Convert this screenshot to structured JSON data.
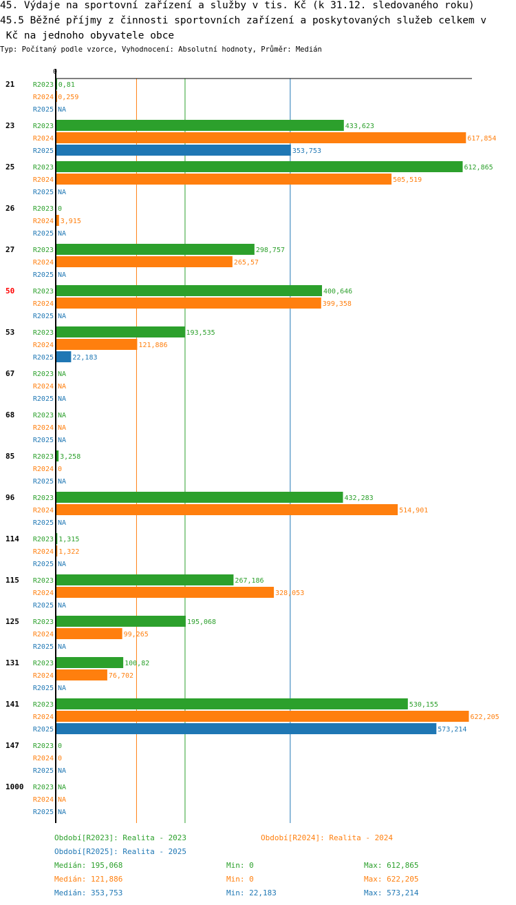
{
  "title": "45. Výdaje na sportovní zařízení a služby v tis. Kč (k 31.12. sledovaného roku)",
  "subtitle_line1": "45.5 Běžné příjmy z činnosti sportovních zařízení a poskytovaných služeb celkem v",
  "subtitle_line2": " Kč na jednoho obyvatele obce",
  "info": "Typ: Počítaný podle vzorce, Vyhodnocení: Absolutní hodnoty, Průměr: Medián",
  "colors": {
    "R2023": "#2ca02c",
    "R2024": "#ff7f0e",
    "R2025": "#1f77b4",
    "highlight": "#ff0000"
  },
  "chart_data": {
    "type": "bar",
    "orientation": "horizontal",
    "x_tick": "0",
    "xlim": [
      0,
      630
    ],
    "series_names": [
      "R2023",
      "R2024",
      "R2025"
    ],
    "categories": [
      "21",
      "23",
      "25",
      "26",
      "27",
      "50",
      "53",
      "67",
      "68",
      "85",
      "96",
      "114",
      "115",
      "125",
      "131",
      "141",
      "147",
      "1000"
    ],
    "highlight_category": "50",
    "series": [
      {
        "name": "R2023",
        "values": [
          0.81,
          433.623,
          612.865,
          0,
          298.757,
          400.646,
          193.535,
          null,
          null,
          3.258,
          432.283,
          1.315,
          267.186,
          195.068,
          100.82,
          530.155,
          0,
          null
        ]
      },
      {
        "name": "R2024",
        "values": [
          0.259,
          617.854,
          505.519,
          3.915,
          265.57,
          399.358,
          121.886,
          null,
          null,
          0,
          514.901,
          1.322,
          328.053,
          99.265,
          76.702,
          622.205,
          0,
          null
        ]
      },
      {
        "name": "R2025",
        "values": [
          null,
          353.753,
          null,
          null,
          null,
          null,
          22.183,
          null,
          null,
          null,
          null,
          null,
          null,
          null,
          null,
          573.214,
          null,
          null
        ]
      }
    ],
    "medians": {
      "R2023": 195.068,
      "R2024": 121.886,
      "R2025": 353.753
    }
  },
  "legend": {
    "R2023": "Období[R2023]: Realita - 2023",
    "R2024": "Období[R2024]: Realita - 2024",
    "R2025": "Období[R2025]: Realita - 2025"
  },
  "stats": [
    {
      "series": "R2023",
      "median": "Medián: 195,068",
      "min": "Min: 0",
      "max": "Max: 612,865"
    },
    {
      "series": "R2024",
      "median": "Medián: 121,886",
      "min": "Min: 0",
      "max": "Max: 622,205"
    },
    {
      "series": "R2025",
      "median": "Medián: 353,753",
      "min": "Min: 22,183",
      "max": "Max: 573,214"
    }
  ]
}
